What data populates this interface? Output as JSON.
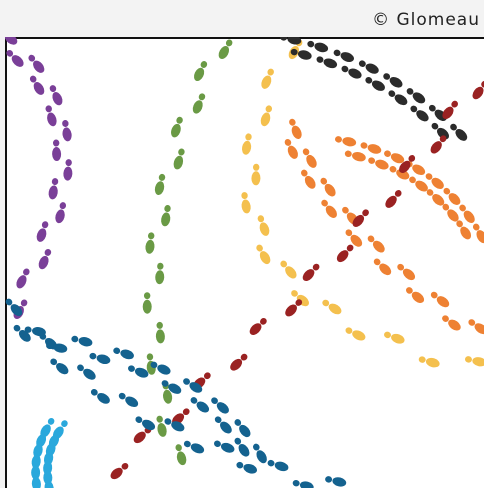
{
  "credit": "© Glomeau"
}
